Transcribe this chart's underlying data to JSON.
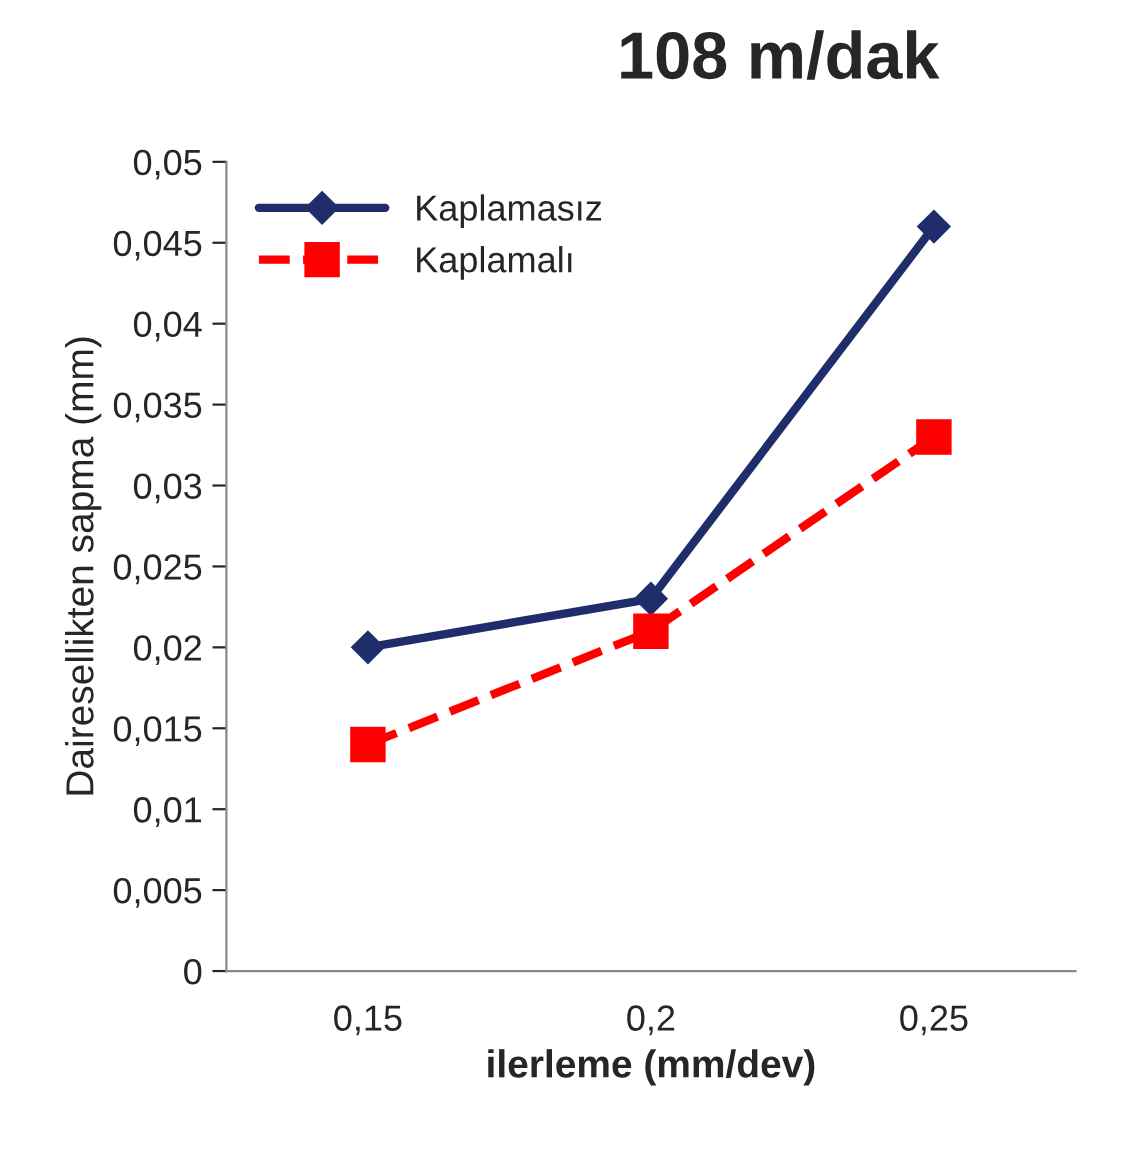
{
  "chart_data": {
    "type": "line",
    "title": "108 m/dak",
    "xlabel": "ilerleme (mm/dev)",
    "ylabel": "Dairesellikten sapma (mm)",
    "categories": [
      "0,15",
      "0,2",
      "0,25"
    ],
    "series": [
      {
        "name": "Kaplamasız",
        "color": "#1f2d6b",
        "values": [
          0.02,
          0.023,
          0.046
        ],
        "marker": "diamond",
        "line_style": "solid"
      },
      {
        "name": "Kaplamalı",
        "color": "#ff0000",
        "values": [
          0.014,
          0.021,
          0.033
        ],
        "marker": "square",
        "line_style": "dashed"
      }
    ],
    "ylim": [
      0,
      0.05
    ],
    "yticks": [
      {
        "value": 0,
        "label": "0"
      },
      {
        "value": 0.005,
        "label": "0,005"
      },
      {
        "value": 0.01,
        "label": "0,01"
      },
      {
        "value": 0.015,
        "label": "0,015"
      },
      {
        "value": 0.02,
        "label": "0,02"
      },
      {
        "value": 0.025,
        "label": "0,025"
      },
      {
        "value": 0.03,
        "label": "0,03"
      },
      {
        "value": 0.035,
        "label": "0,035"
      },
      {
        "value": 0.04,
        "label": "0,04"
      },
      {
        "value": 0.045,
        "label": "0,045"
      },
      {
        "value": 0.05,
        "label": "0,05"
      }
    ],
    "grid": false,
    "legend": "top left"
  }
}
